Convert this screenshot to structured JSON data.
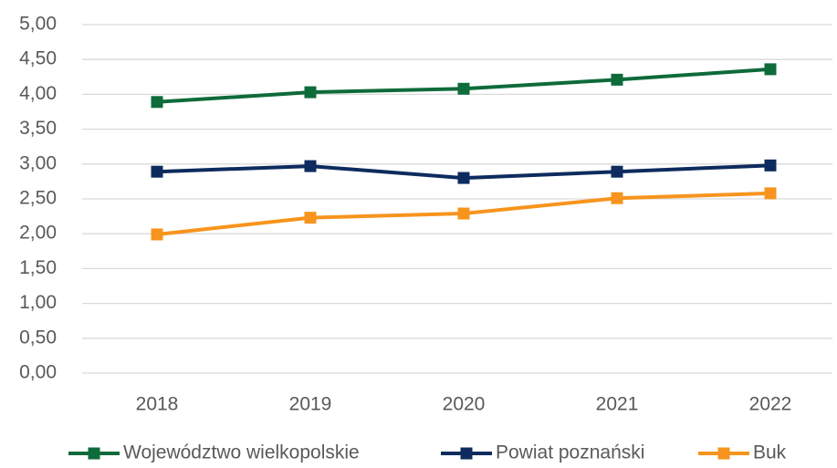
{
  "chart_data": {
    "type": "line",
    "categories": [
      "2018",
      "2019",
      "2020",
      "2021",
      "2022"
    ],
    "series": [
      {
        "name": "Województwo wielkopolskie",
        "color": "#0e6b3a",
        "values": [
          3.89,
          4.03,
          4.08,
          4.21,
          4.36
        ]
      },
      {
        "name": "Powiat poznański",
        "color": "#0d2b5e",
        "values": [
          2.89,
          2.97,
          2.8,
          2.89,
          2.98
        ]
      },
      {
        "name": "Buk",
        "color": "#f7941d",
        "values": [
          1.99,
          2.23,
          2.29,
          2.51,
          2.58
        ]
      }
    ],
    "ylim": [
      0,
      5
    ],
    "yticks": [
      {
        "value": 0,
        "label": "0,00"
      },
      {
        "value": 0.5,
        "label": "0,50"
      },
      {
        "value": 1,
        "label": "1,00"
      },
      {
        "value": 1.5,
        "label": "1,50"
      },
      {
        "value": 2,
        "label": "2,00"
      },
      {
        "value": 2.5,
        "label": "2,50"
      },
      {
        "value": 3,
        "label": "3,00"
      },
      {
        "value": 3.5,
        "label": "3,50"
      },
      {
        "value": 4,
        "label": "4,00"
      },
      {
        "value": 4.5,
        "label": "4,50"
      },
      {
        "value": 5,
        "label": "5,00"
      }
    ],
    "grid": true,
    "legend": "bottom"
  }
}
